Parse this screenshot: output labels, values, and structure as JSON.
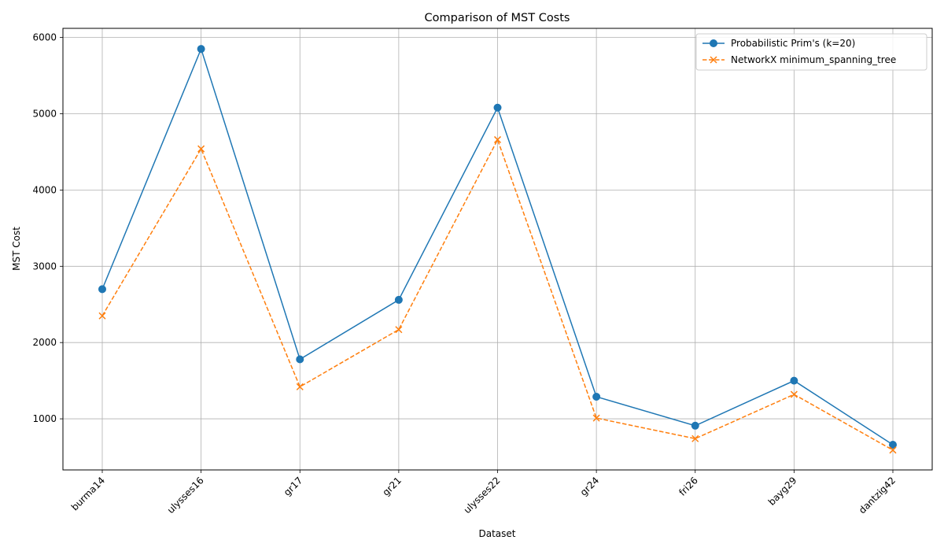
{
  "chart_data": {
    "type": "line",
    "title": "Comparison of MST Costs",
    "xlabel": "Dataset",
    "ylabel": "MST Cost",
    "categories": [
      "burma14",
      "ulysses16",
      "gr17",
      "gr21",
      "ulysses22",
      "gr24",
      "fri26",
      "bayg29",
      "dantzig42"
    ],
    "ylim": [
      330,
      6120
    ],
    "yticks": [
      1000,
      2000,
      3000,
      4000,
      5000,
      6000
    ],
    "grid": true,
    "legend_position": "top-right",
    "series": [
      {
        "name": "Probabilistic Prim's (k=20)",
        "values": [
          2700,
          5850,
          1780,
          2560,
          5080,
          1290,
          910,
          1500,
          660
        ],
        "color": "#1f77b4",
        "marker": "circle",
        "linestyle": "solid"
      },
      {
        "name": "NetworkX minimum_spanning_tree",
        "values": [
          2350,
          4540,
          1420,
          2170,
          4660,
          1010,
          740,
          1320,
          590
        ],
        "color": "#ff7f0e",
        "marker": "x",
        "linestyle": "dashed"
      }
    ]
  }
}
